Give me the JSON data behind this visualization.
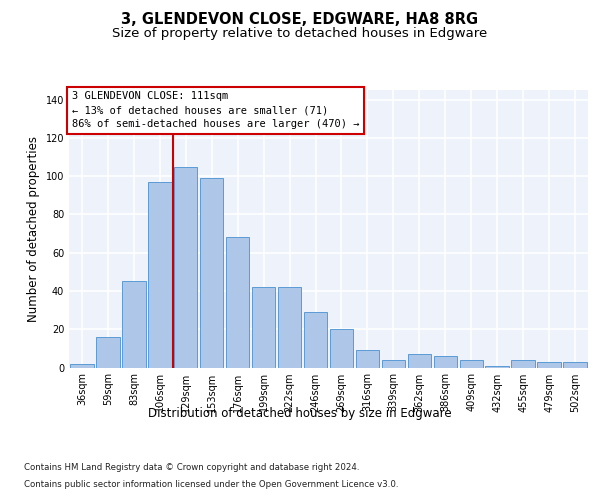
{
  "title1": "3, GLENDEVON CLOSE, EDGWARE, HA8 8RG",
  "title2": "Size of property relative to detached houses in Edgware",
  "xlabel": "Distribution of detached houses by size in Edgware",
  "ylabel": "Number of detached properties",
  "categories": [
    "36sqm",
    "59sqm",
    "83sqm",
    "106sqm",
    "129sqm",
    "153sqm",
    "176sqm",
    "199sqm",
    "222sqm",
    "246sqm",
    "269sqm",
    "316sqm",
    "339sqm",
    "362sqm",
    "386sqm",
    "409sqm",
    "432sqm",
    "455sqm",
    "479sqm",
    "502sqm"
  ],
  "values": [
    2,
    16,
    45,
    97,
    105,
    99,
    68,
    42,
    42,
    29,
    20,
    9,
    4,
    7,
    6,
    4,
    1,
    4,
    3,
    3
  ],
  "bar_color": "#aec6e8",
  "bar_edge_color": "#5b9bd5",
  "annotation_text_line1": "3 GLENDEVON CLOSE: 111sqm",
  "annotation_text_line2": "← 13% of detached houses are smaller (71)",
  "annotation_text_line3": "86% of semi-detached houses are larger (470) →",
  "vline_color": "#cc0000",
  "vline_x": 3.5,
  "ylim": [
    0,
    145
  ],
  "yticks": [
    0,
    20,
    40,
    60,
    80,
    100,
    120,
    140
  ],
  "footnote1": "Contains HM Land Registry data © Crown copyright and database right 2024.",
  "footnote2": "Contains public sector information licensed under the Open Government Licence v3.0.",
  "bg_color": "#edf2fb",
  "grid_color": "#ffffff",
  "title1_fontsize": 10.5,
  "title2_fontsize": 9.5,
  "tick_fontsize": 7,
  "ylabel_fontsize": 8.5,
  "xlabel_fontsize": 8.5,
  "footnote_fontsize": 6.2,
  "ann_fontsize": 7.5
}
